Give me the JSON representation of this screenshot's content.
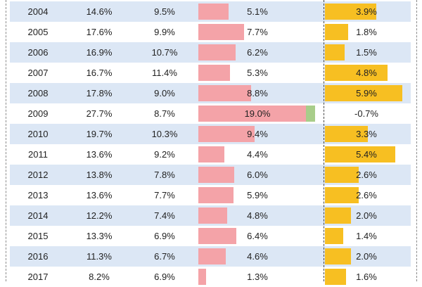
{
  "chart_data": {
    "type": "table",
    "columns": [
      "year",
      "col1_pct",
      "col2_pct",
      "col3_pct",
      "col4_pct"
    ],
    "rows": [
      {
        "year": "2004",
        "c1": "14.6%",
        "c2": "9.5%",
        "c3": "5.1%",
        "c4": "3.9%",
        "v3": 5.1,
        "v4": 3.9
      },
      {
        "year": "2005",
        "c1": "17.6%",
        "c2": "9.9%",
        "c3": "7.7%",
        "c4": "1.8%",
        "v3": 7.7,
        "v4": 1.8
      },
      {
        "year": "2006",
        "c1": "16.9%",
        "c2": "10.7%",
        "c3": "6.2%",
        "c4": "1.5%",
        "v3": 6.2,
        "v4": 1.5
      },
      {
        "year": "2007",
        "c1": "16.7%",
        "c2": "11.4%",
        "c3": "5.3%",
        "c4": "4.8%",
        "v3": 5.3,
        "v4": 4.8
      },
      {
        "year": "2008",
        "c1": "17.8%",
        "c2": "9.0%",
        "c3": "8.8%",
        "c4": "5.9%",
        "v3": 8.8,
        "v4": 5.9
      },
      {
        "year": "2009",
        "c1": "27.7%",
        "c2": "8.7%",
        "c3": "19.0%",
        "c4": "-0.7%",
        "v3": 19.0,
        "v4": -0.7
      },
      {
        "year": "2010",
        "c1": "19.7%",
        "c2": "10.3%",
        "c3": "9.4%",
        "c4": "3.3%",
        "v3": 9.4,
        "v4": 3.3
      },
      {
        "year": "2011",
        "c1": "13.6%",
        "c2": "9.2%",
        "c3": "4.4%",
        "c4": "5.4%",
        "v3": 4.4,
        "v4": 5.4
      },
      {
        "year": "2012",
        "c1": "13.8%",
        "c2": "7.8%",
        "c3": "6.0%",
        "c4": "2.6%",
        "v3": 6.0,
        "v4": 2.6
      },
      {
        "year": "2013",
        "c1": "13.6%",
        "c2": "7.7%",
        "c3": "5.9%",
        "c4": "2.6%",
        "v3": 5.9,
        "v4": 2.6
      },
      {
        "year": "2014",
        "c1": "12.2%",
        "c2": "7.4%",
        "c3": "4.8%",
        "c4": "2.0%",
        "v3": 4.8,
        "v4": 2.0
      },
      {
        "year": "2015",
        "c1": "13.3%",
        "c2": "6.9%",
        "c3": "6.4%",
        "c4": "1.4%",
        "v3": 6.4,
        "v4": 1.4
      },
      {
        "year": "2016",
        "c1": "11.3%",
        "c2": "6.7%",
        "c3": "4.6%",
        "c4": "2.0%",
        "v3": 4.6,
        "v4": 2.0
      },
      {
        "year": "2017",
        "c1": "8.2%",
        "c2": "6.9%",
        "c3": "1.3%",
        "c4": "1.6%",
        "v3": 1.3,
        "v4": 1.6
      }
    ],
    "colors": {
      "row_shade": "#dce7f5",
      "col3_bar": "#f4a3a8",
      "col4_bar": "#f7bf22",
      "negative_bar": "#a8cd8a"
    }
  }
}
